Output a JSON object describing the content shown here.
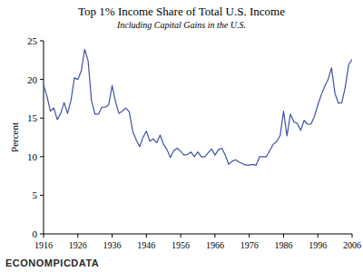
{
  "chart_data": {
    "type": "line",
    "title": "Top 1% Income Share of Total U.S. Income",
    "subtitle": "Including Capital Gains in the U.S.",
    "y_label": "Percent",
    "annotation": "ECONOMPICDATA",
    "color": "#3f51a3",
    "x": [
      1916,
      1917,
      1918,
      1919,
      1920,
      1921,
      1922,
      1923,
      1924,
      1925,
      1926,
      1927,
      1928,
      1929,
      1930,
      1931,
      1932,
      1933,
      1934,
      1935,
      1936,
      1937,
      1938,
      1939,
      1940,
      1941,
      1942,
      1943,
      1944,
      1945,
      1946,
      1947,
      1948,
      1949,
      1950,
      1951,
      1952,
      1953,
      1954,
      1955,
      1956,
      1957,
      1958,
      1959,
      1960,
      1961,
      1962,
      1963,
      1964,
      1965,
      1966,
      1967,
      1968,
      1969,
      1970,
      1971,
      1972,
      1973,
      1974,
      1975,
      1976,
      1977,
      1978,
      1979,
      1980,
      1981,
      1982,
      1983,
      1984,
      1985,
      1986,
      1987,
      1988,
      1989,
      1990,
      1991,
      1992,
      1993,
      1994,
      1995,
      1996,
      1997,
      1998,
      1999,
      2000,
      2001,
      2002,
      2003,
      2004,
      2005,
      2006
    ],
    "values": [
      19.3,
      17.8,
      15.9,
      16.3,
      14.8,
      15.6,
      17.0,
      15.6,
      17.3,
      20.2,
      20.0,
      21.1,
      23.9,
      22.4,
      17.2,
      15.5,
      15.5,
      16.4,
      16.4,
      16.7,
      19.2,
      17.1,
      15.6,
      15.9,
      16.3,
      15.8,
      13.3,
      12.2,
      11.3,
      12.5,
      13.3,
      12.0,
      12.3,
      11.8,
      12.8,
      11.6,
      10.9,
      9.9,
      10.8,
      11.1,
      10.7,
      10.2,
      10.3,
      10.6,
      10.0,
      10.6,
      10.0,
      10.0,
      10.5,
      11.0,
      10.2,
      10.9,
      11.1,
      10.2,
      9.0,
      9.4,
      9.6,
      9.3,
      9.1,
      8.9,
      8.9,
      9.0,
      8.9,
      10.0,
      10.0,
      10.0,
      10.8,
      11.6,
      12.0,
      12.7,
      15.9,
      12.7,
      15.5,
      14.5,
      14.3,
      13.4,
      14.7,
      14.2,
      14.2,
      15.2,
      16.7,
      18.0,
      19.1,
      20.0,
      21.5,
      18.2,
      16.9,
      17.0,
      19.0,
      21.9,
      22.6
    ],
    "xlim": [
      1916,
      2006
    ],
    "xticks": [
      1916,
      1926,
      1936,
      1946,
      1956,
      1966,
      1976,
      1986,
      1996,
      2006
    ],
    "ylim": [
      0,
      25
    ],
    "yticks": [
      0,
      5,
      10,
      15,
      20,
      25
    ],
    "grid": false
  }
}
